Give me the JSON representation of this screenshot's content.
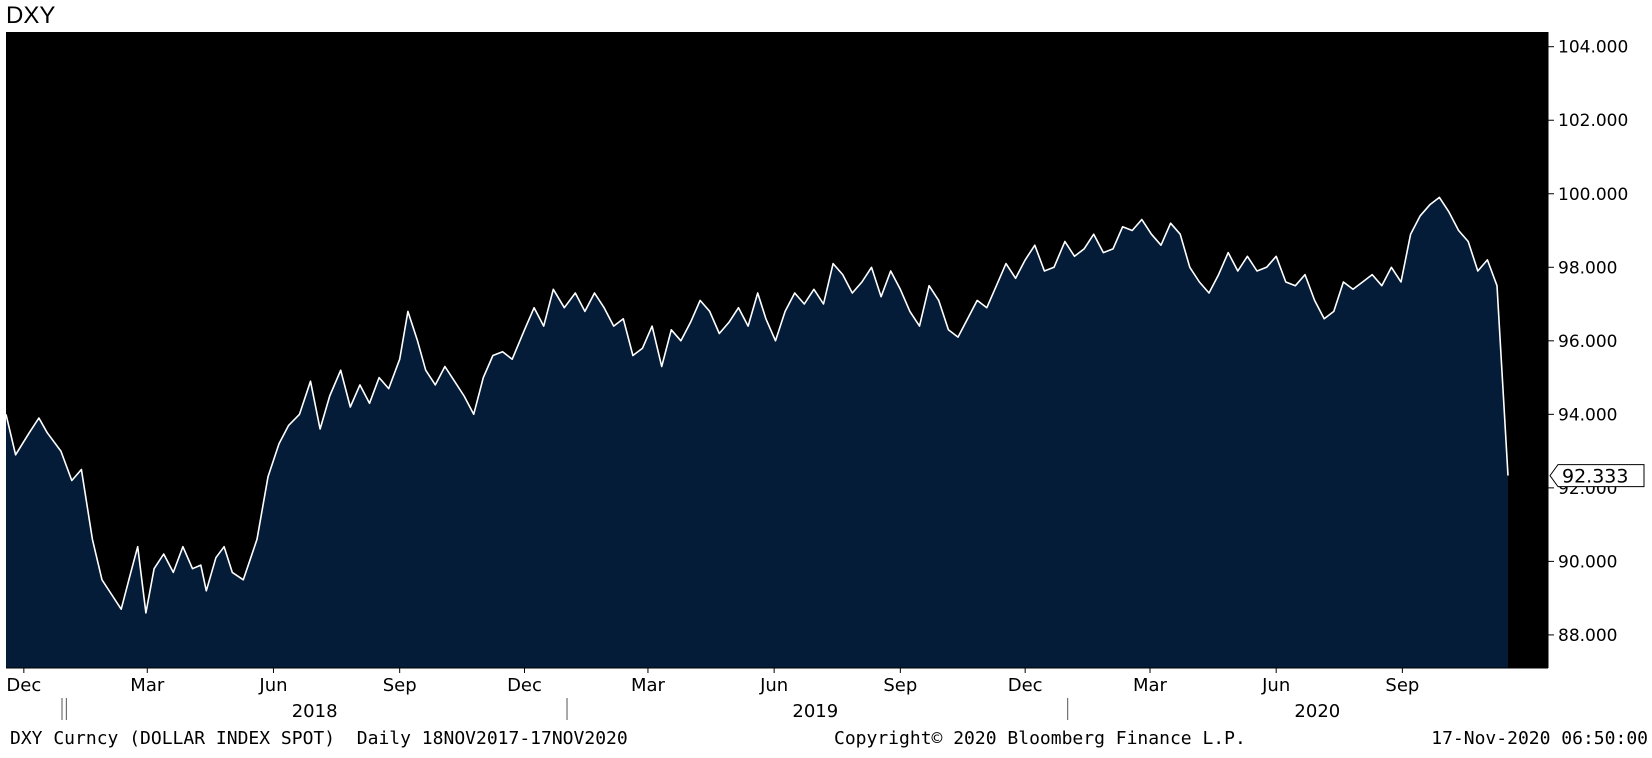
{
  "title": "DXY",
  "footer": {
    "left": "DXY Curncy (DOLLAR INDEX SPOT)  Daily 18NOV2017-17NOV2020",
    "center": "Copyright© 2020 Bloomberg Finance L.P.",
    "right": "17-Nov-2020 06:50:00"
  },
  "colors": {
    "plot_background": "#000000",
    "area_fill": "#041c38",
    "line": "#ffffff"
  },
  "chart_data": {
    "type": "area",
    "title": "DXY",
    "xlabel": "",
    "ylabel": "",
    "x_range": [
      "2017-11-18",
      "2020-11-17"
    ],
    "ylim": [
      87.1,
      104.4
    ],
    "y_ticks": [
      "88.000",
      "90.000",
      "92.000",
      "94.000",
      "96.000",
      "98.000",
      "100.000",
      "102.000",
      "104.000"
    ],
    "y_tick_values": [
      88,
      90,
      92,
      94,
      96,
      98,
      100,
      102,
      104
    ],
    "x_month_ticks": [
      {
        "date": "2017-12-01",
        "label": "Dec"
      },
      {
        "date": "2018-03-01",
        "label": "Mar"
      },
      {
        "date": "2018-06-01",
        "label": "Jun"
      },
      {
        "date": "2018-09-01",
        "label": "Sep"
      },
      {
        "date": "2018-12-01",
        "label": "Dec"
      },
      {
        "date": "2019-03-01",
        "label": "Mar"
      },
      {
        "date": "2019-06-01",
        "label": "Jun"
      },
      {
        "date": "2019-09-01",
        "label": "Sep"
      },
      {
        "date": "2019-12-01",
        "label": "Dec"
      },
      {
        "date": "2020-03-01",
        "label": "Mar"
      },
      {
        "date": "2020-06-01",
        "label": "Jun"
      },
      {
        "date": "2020-09-01",
        "label": "Sep"
      }
    ],
    "x_year_labels": [
      {
        "label": "2018",
        "center": "2018-07-01",
        "start": "2018-01-01"
      },
      {
        "label": "2019",
        "center": "2019-07-01",
        "start": "2019-01-01"
      },
      {
        "label": "2020",
        "center": "2020-07-01",
        "start": "2020-01-01"
      }
    ],
    "last_value": "92.333",
    "series": [
      {
        "values": [
          [
            "2017-11-18",
            94.0
          ],
          [
            "2017-11-25",
            92.9
          ],
          [
            "2017-12-05",
            93.5
          ],
          [
            "2017-12-12",
            93.9
          ],
          [
            "2017-12-18",
            93.5
          ],
          [
            "2017-12-28",
            93.0
          ],
          [
            "2018-01-05",
            92.2
          ],
          [
            "2018-01-12",
            92.5
          ],
          [
            "2018-01-20",
            90.6
          ],
          [
            "2018-01-27",
            89.5
          ],
          [
            "2018-02-03",
            89.1
          ],
          [
            "2018-02-10",
            88.7
          ],
          [
            "2018-02-17",
            89.7
          ],
          [
            "2018-02-22",
            90.4
          ],
          [
            "2018-02-28",
            88.6
          ],
          [
            "2018-03-06",
            89.8
          ],
          [
            "2018-03-13",
            90.2
          ],
          [
            "2018-03-20",
            89.7
          ],
          [
            "2018-03-27",
            90.4
          ],
          [
            "2018-04-03",
            89.8
          ],
          [
            "2018-04-09",
            89.9
          ],
          [
            "2018-04-13",
            89.2
          ],
          [
            "2018-04-20",
            90.1
          ],
          [
            "2018-04-26",
            90.4
          ],
          [
            "2018-05-02",
            89.7
          ],
          [
            "2018-05-10",
            89.5
          ],
          [
            "2018-05-20",
            90.6
          ],
          [
            "2018-05-28",
            92.3
          ],
          [
            "2018-06-05",
            93.2
          ],
          [
            "2018-06-12",
            93.7
          ],
          [
            "2018-06-20",
            94.0
          ],
          [
            "2018-06-28",
            94.9
          ],
          [
            "2018-07-05",
            93.6
          ],
          [
            "2018-07-12",
            94.5
          ],
          [
            "2018-07-20",
            95.2
          ],
          [
            "2018-07-27",
            94.2
          ],
          [
            "2018-08-03",
            94.8
          ],
          [
            "2018-08-10",
            94.3
          ],
          [
            "2018-08-17",
            95.0
          ],
          [
            "2018-08-24",
            94.7
          ],
          [
            "2018-09-01",
            95.5
          ],
          [
            "2018-09-07",
            96.8
          ],
          [
            "2018-09-14",
            96.0
          ],
          [
            "2018-09-20",
            95.2
          ],
          [
            "2018-09-27",
            94.8
          ],
          [
            "2018-10-04",
            95.3
          ],
          [
            "2018-10-11",
            94.9
          ],
          [
            "2018-10-18",
            94.5
          ],
          [
            "2018-10-25",
            94.0
          ],
          [
            "2018-11-01",
            95.0
          ],
          [
            "2018-11-08",
            95.6
          ],
          [
            "2018-11-15",
            95.7
          ],
          [
            "2018-11-22",
            95.5
          ],
          [
            "2018-12-01",
            96.3
          ],
          [
            "2018-12-08",
            96.9
          ],
          [
            "2018-12-15",
            96.4
          ],
          [
            "2018-12-22",
            97.4
          ],
          [
            "2018-12-30",
            96.9
          ],
          [
            "2019-01-07",
            97.3
          ],
          [
            "2019-01-14",
            96.8
          ],
          [
            "2019-01-21",
            97.3
          ],
          [
            "2019-01-28",
            96.9
          ],
          [
            "2019-02-04",
            96.4
          ],
          [
            "2019-02-11",
            96.6
          ],
          [
            "2019-02-18",
            95.6
          ],
          [
            "2019-02-25",
            95.8
          ],
          [
            "2019-03-04",
            96.4
          ],
          [
            "2019-03-11",
            95.3
          ],
          [
            "2019-03-18",
            96.3
          ],
          [
            "2019-03-25",
            96.0
          ],
          [
            "2019-04-01",
            96.5
          ],
          [
            "2019-04-08",
            97.1
          ],
          [
            "2019-04-15",
            96.8
          ],
          [
            "2019-04-22",
            96.2
          ],
          [
            "2019-04-29",
            96.5
          ],
          [
            "2019-05-06",
            96.9
          ],
          [
            "2019-05-13",
            96.4
          ],
          [
            "2019-05-20",
            97.3
          ],
          [
            "2019-05-26",
            96.6
          ],
          [
            "2019-06-02",
            96.0
          ],
          [
            "2019-06-09",
            96.8
          ],
          [
            "2019-06-16",
            97.3
          ],
          [
            "2019-06-23",
            97.0
          ],
          [
            "2019-06-30",
            97.4
          ],
          [
            "2019-07-07",
            97.0
          ],
          [
            "2019-07-14",
            98.1
          ],
          [
            "2019-07-21",
            97.8
          ],
          [
            "2019-07-28",
            97.3
          ],
          [
            "2019-08-04",
            97.6
          ],
          [
            "2019-08-11",
            98.0
          ],
          [
            "2019-08-18",
            97.2
          ],
          [
            "2019-08-25",
            97.9
          ],
          [
            "2019-09-01",
            97.4
          ],
          [
            "2019-09-08",
            96.8
          ],
          [
            "2019-09-15",
            96.4
          ],
          [
            "2019-09-22",
            97.5
          ],
          [
            "2019-09-29",
            97.1
          ],
          [
            "2019-10-06",
            96.3
          ],
          [
            "2019-10-13",
            96.1
          ],
          [
            "2019-10-20",
            96.6
          ],
          [
            "2019-10-27",
            97.1
          ],
          [
            "2019-11-03",
            96.9
          ],
          [
            "2019-11-10",
            97.5
          ],
          [
            "2019-11-17",
            98.1
          ],
          [
            "2019-11-24",
            97.7
          ],
          [
            "2019-12-01",
            98.2
          ],
          [
            "2019-12-08",
            98.6
          ],
          [
            "2019-12-15",
            97.9
          ],
          [
            "2019-12-22",
            98.0
          ],
          [
            "2019-12-30",
            98.7
          ],
          [
            "2020-01-06",
            98.3
          ],
          [
            "2020-01-13",
            98.5
          ],
          [
            "2020-01-20",
            98.9
          ],
          [
            "2020-01-27",
            98.4
          ],
          [
            "2020-02-03",
            98.5
          ],
          [
            "2020-02-10",
            99.1
          ],
          [
            "2020-02-17",
            99.0
          ],
          [
            "2020-02-24",
            99.3
          ],
          [
            "2020-03-02",
            98.9
          ],
          [
            "2020-03-09",
            98.6
          ],
          [
            "2020-03-16",
            99.2
          ],
          [
            "2020-03-23",
            98.9
          ],
          [
            "2020-03-30",
            98.0
          ],
          [
            "2020-04-06",
            97.6
          ],
          [
            "2020-04-13",
            97.3
          ],
          [
            "2020-04-20",
            97.8
          ],
          [
            "2020-04-27",
            98.4
          ],
          [
            "2020-05-04",
            97.9
          ],
          [
            "2020-05-11",
            98.3
          ],
          [
            "2020-05-18",
            97.9
          ],
          [
            "2020-05-25",
            98.0
          ],
          [
            "2020-06-01",
            98.3
          ],
          [
            "2020-06-08",
            97.6
          ],
          [
            "2020-06-15",
            97.5
          ],
          [
            "2020-06-22",
            97.8
          ],
          [
            "2020-06-29",
            97.1
          ],
          [
            "2020-07-06",
            96.6
          ],
          [
            "2020-07-13",
            96.8
          ],
          [
            "2020-07-20",
            97.6
          ],
          [
            "2020-07-27",
            97.4
          ],
          [
            "2020-08-03",
            97.6
          ],
          [
            "2020-08-10",
            97.8
          ],
          [
            "2020-08-17",
            97.5
          ],
          [
            "2020-08-24",
            98.0
          ],
          [
            "2020-08-31",
            97.6
          ],
          [
            "2020-09-07",
            98.9
          ],
          [
            "2020-09-14",
            99.4
          ],
          [
            "2020-09-21",
            99.7
          ],
          [
            "2020-09-28",
            99.9
          ],
          [
            "2020-10-05",
            99.5
          ],
          [
            "2020-10-12",
            99.0
          ],
          [
            "2020-10-19",
            98.7
          ],
          [
            "2020-10-26",
            97.9
          ],
          [
            "2020-11-02",
            98.2
          ],
          [
            "2020-11-09",
            97.5
          ],
          [
            "2020-11-17",
            92.333
          ]
        ]
      }
    ]
  }
}
